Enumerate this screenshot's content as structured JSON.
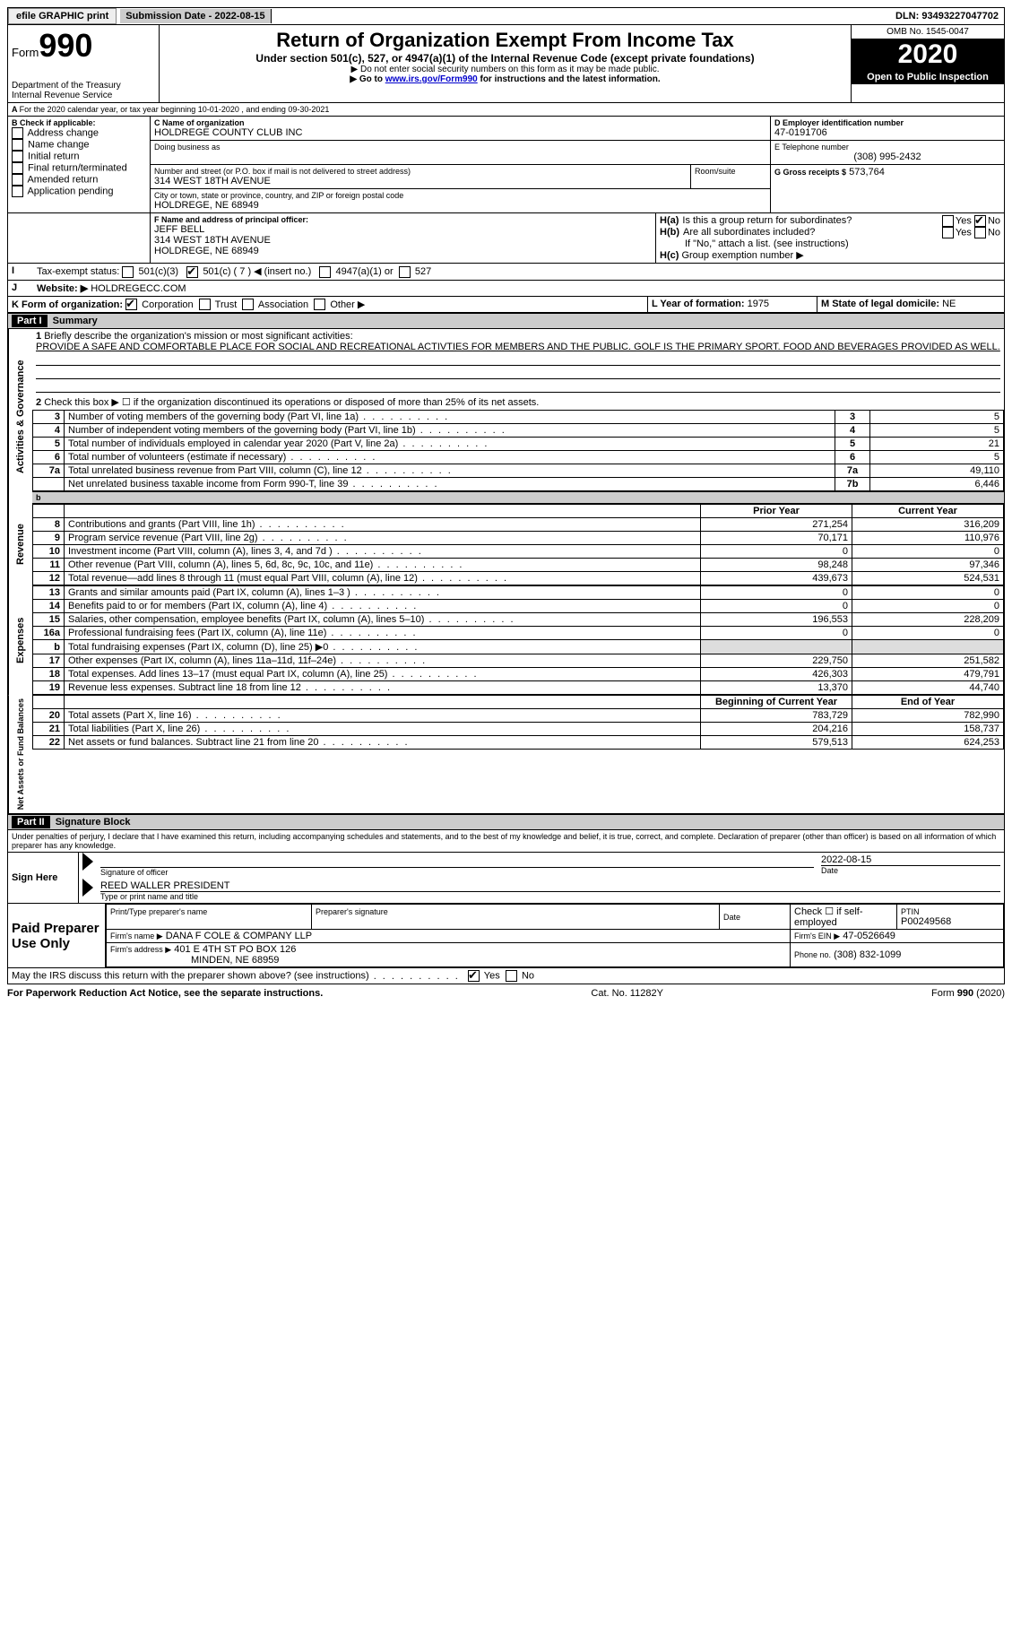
{
  "topbar": {
    "efile": "efile GRAPHIC print",
    "submission_label": "Submission Date - ",
    "submission_date": "2022-08-15",
    "dln_label": "DLN: ",
    "dln": "93493227047702"
  },
  "header": {
    "form_prefix": "Form",
    "form_number": "990",
    "dept": "Department of the Treasury\nInternal Revenue Service",
    "title": "Return of Organization Exempt From Income Tax",
    "subtitle": "Under section 501(c), 527, or 4947(a)(1) of the Internal Revenue Code (except private foundations)",
    "note1": "▶ Do not enter social security numbers on this form as it may be made public.",
    "note2_pre": "▶ Go to ",
    "note2_link": "www.irs.gov/Form990",
    "note2_post": " for instructions and the latest information.",
    "omb_label": "OMB No. ",
    "omb": "1545-0047",
    "year": "2020",
    "otpi": "Open to Public Inspection"
  },
  "line_a": "For the 2020 calendar year, or tax year beginning 10-01-2020   , and ending 09-30-2021",
  "box_b": {
    "heading": "B Check if applicable:",
    "opts": [
      "Address change",
      "Name change",
      "Initial return",
      "Final return/terminated",
      "Amended return",
      "Application pending"
    ]
  },
  "box_c": {
    "label": "C Name of organization",
    "name": "HOLDREGE COUNTY CLUB INC",
    "dba_label": "Doing business as",
    "street_label": "Number and street (or P.O. box if mail is not delivered to street address)",
    "room_label": "Room/suite",
    "street": "314 WEST 18TH AVENUE",
    "city_label": "City or town, state or province, country, and ZIP or foreign postal code",
    "city": "HOLDREGE, NE  68949"
  },
  "box_d": {
    "label": "D Employer identification number",
    "value": "47-0191706"
  },
  "box_e": {
    "label": "E Telephone number",
    "value": "(308) 995-2432"
  },
  "box_g": {
    "label": "G Gross receipts $",
    "value": "573,764"
  },
  "box_f": {
    "label": "F  Name and address of principal officer:",
    "name": "JEFF BELL",
    "street": "314 WEST 18TH AVENUE",
    "city": "HOLDREGE, NE  68949"
  },
  "box_h": {
    "ha": "Is this a group return for subordinates?",
    "hb": "Are all subordinates included?",
    "hnote": "If \"No,\" attach a list. (see instructions)",
    "hc": "Group exemption number ▶",
    "yes": "Yes",
    "no": "No"
  },
  "line_i": {
    "label": "Tax-exempt status:",
    "opts": [
      "501(c)(3)",
      "501(c) ( 7 ) ◀ (insert no.)",
      "4947(a)(1) or",
      "527"
    ]
  },
  "line_j": {
    "label": "Website: ▶",
    "value": "HOLDREGECC.COM"
  },
  "line_k": {
    "label": "K Form of organization:",
    "opts": [
      "Corporation",
      "Trust",
      "Association",
      "Other ▶"
    ]
  },
  "line_l": {
    "label": "L Year of formation:",
    "value": "1975"
  },
  "line_m": {
    "label": "M State of legal domicile:",
    "value": "NE"
  },
  "part1": {
    "label": "Part I",
    "title": "Summary",
    "mission_label": "Briefly describe the organization's mission or most significant activities:",
    "mission": "PROVIDE A SAFE AND COMFORTABLE PLACE FOR SOCIAL AND RECREATIONAL ACTIVTIES FOR MEMBERS AND THE PUBLIC. GOLF IS THE PRIMARY SPORT. FOOD AND BEVERAGES PROVIDED AS WELL.",
    "line2": "Check this box ▶ ☐  if the organization discontinued its operations or disposed of more than 25% of its net assets.",
    "governance_rows": [
      {
        "n": "3",
        "t": "Number of voting members of the governing body (Part VI, line 1a)",
        "box": "3",
        "v": "5"
      },
      {
        "n": "4",
        "t": "Number of independent voting members of the governing body (Part VI, line 1b)",
        "box": "4",
        "v": "5"
      },
      {
        "n": "5",
        "t": "Total number of individuals employed in calendar year 2020 (Part V, line 2a)",
        "box": "5",
        "v": "21"
      },
      {
        "n": "6",
        "t": "Total number of volunteers (estimate if necessary)",
        "box": "6",
        "v": "5"
      },
      {
        "n": "7a",
        "t": "Total unrelated business revenue from Part VIII, column (C), line 12",
        "box": "7a",
        "v": "49,110"
      },
      {
        "n": "",
        "t": "Net unrelated business taxable income from Form 990-T, line 39",
        "box": "7b",
        "v": "6,446"
      }
    ],
    "col_prior": "Prior Year",
    "col_current": "Current Year",
    "revenue_rows": [
      {
        "n": "8",
        "t": "Contributions and grants (Part VIII, line 1h)",
        "p": "271,254",
        "c": "316,209"
      },
      {
        "n": "9",
        "t": "Program service revenue (Part VIII, line 2g)",
        "p": "70,171",
        "c": "110,976"
      },
      {
        "n": "10",
        "t": "Investment income (Part VIII, column (A), lines 3, 4, and 7d )",
        "p": "0",
        "c": "0"
      },
      {
        "n": "11",
        "t": "Other revenue (Part VIII, column (A), lines 5, 6d, 8c, 9c, 10c, and 11e)",
        "p": "98,248",
        "c": "97,346"
      },
      {
        "n": "12",
        "t": "Total revenue—add lines 8 through 11 (must equal Part VIII, column (A), line 12)",
        "p": "439,673",
        "c": "524,531"
      }
    ],
    "expense_rows": [
      {
        "n": "13",
        "t": "Grants and similar amounts paid (Part IX, column (A), lines 1–3 )",
        "p": "0",
        "c": "0"
      },
      {
        "n": "14",
        "t": "Benefits paid to or for members (Part IX, column (A), line 4)",
        "p": "0",
        "c": "0"
      },
      {
        "n": "15",
        "t": "Salaries, other compensation, employee benefits (Part IX, column (A), lines 5–10)",
        "p": "196,553",
        "c": "228,209"
      },
      {
        "n": "16a",
        "t": "Professional fundraising fees (Part IX, column (A), line 11e)",
        "p": "0",
        "c": "0"
      },
      {
        "n": "b",
        "t": "Total fundraising expenses (Part IX, column (D), line 25) ▶0",
        "p": "",
        "c": "",
        "shade": true
      },
      {
        "n": "17",
        "t": "Other expenses (Part IX, column (A), lines 11a–11d, 11f–24e)",
        "p": "229,750",
        "c": "251,582"
      },
      {
        "n": "18",
        "t": "Total expenses. Add lines 13–17 (must equal Part IX, column (A), line 25)",
        "p": "426,303",
        "c": "479,791"
      },
      {
        "n": "19",
        "t": "Revenue less expenses. Subtract line 18 from line 12",
        "p": "13,370",
        "c": "44,740"
      }
    ],
    "col_begin": "Beginning of Current Year",
    "col_end": "End of Year",
    "net_rows": [
      {
        "n": "20",
        "t": "Total assets (Part X, line 16)",
        "p": "783,729",
        "c": "782,990"
      },
      {
        "n": "21",
        "t": "Total liabilities (Part X, line 26)",
        "p": "204,216",
        "c": "158,737"
      },
      {
        "n": "22",
        "t": "Net assets or fund balances. Subtract line 21 from line 20",
        "p": "579,513",
        "c": "624,253"
      }
    ],
    "vlabels": {
      "gov": "Activities & Governance",
      "rev": "Revenue",
      "exp": "Expenses",
      "net": "Net Assets or Fund Balances"
    }
  },
  "part2": {
    "label": "Part II",
    "title": "Signature Block",
    "jurat": "Under penalties of perjury, I declare that I have examined this return, including accompanying schedules and statements, and to the best of my knowledge and belief, it is true, correct, and complete. Declaration of preparer (other than officer) is based on all information of which preparer has any knowledge.",
    "sign_here": "Sign Here",
    "sig_officer": "Signature of officer",
    "sig_date_val": "2022-08-15",
    "date": "Date",
    "officer_name": "REED WALLER PRESIDENT",
    "type_name": "Type or print name and title",
    "paid": "Paid Preparer Use Only",
    "prep_name_label": "Print/Type preparer's name",
    "prep_sig_label": "Preparer's signature",
    "check_self": "Check ☐  if self-employed",
    "ptin_label": "PTIN",
    "ptin": "P00249568",
    "firm_name_label": "Firm's name   ▶",
    "firm_name": "DANA F COLE & COMPANY LLP",
    "firm_ein_label": "Firm's EIN ▶",
    "firm_ein": "47-0526649",
    "firm_addr_label": "Firm's address ▶",
    "firm_addr1": "401 E 4TH ST PO BOX 126",
    "firm_addr2": "MINDEN, NE  68959",
    "phone_label": "Phone no.",
    "phone": "(308) 832-1099",
    "discuss": "May the IRS discuss this return with the preparer shown above? (see instructions)",
    "yes": "Yes",
    "no": "No"
  },
  "footer": {
    "pra": "For Paperwork Reduction Act Notice, see the separate instructions.",
    "cat": "Cat. No. 11282Y",
    "form": "Form 990 (2020)"
  }
}
